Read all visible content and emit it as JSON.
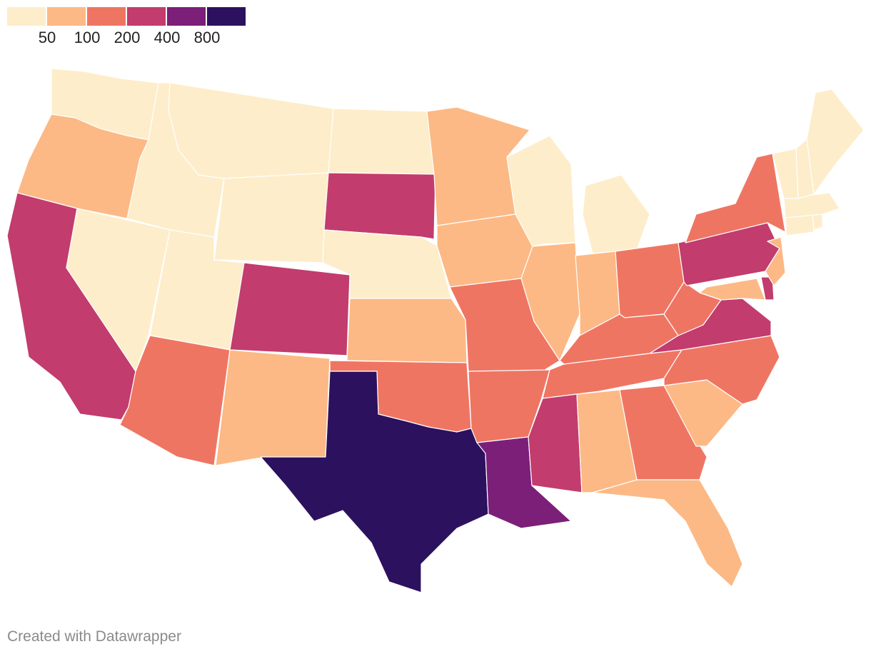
{
  "legend": {
    "colors": [
      "#fdedca",
      "#fcb985",
      "#ef7563",
      "#c23c6e",
      "#7b1f79",
      "#2c115f"
    ],
    "thresholds": [
      "50",
      "100",
      "200",
      "400",
      "800"
    ]
  },
  "map": {
    "units": "bins",
    "states": [
      {
        "name": "Washington",
        "bin": 0
      },
      {
        "name": "Oregon",
        "bin": 1
      },
      {
        "name": "California",
        "bin": 3
      },
      {
        "name": "Nevada",
        "bin": 0
      },
      {
        "name": "Idaho",
        "bin": 0
      },
      {
        "name": "Montana",
        "bin": 0
      },
      {
        "name": "Wyoming",
        "bin": 0
      },
      {
        "name": "Utah",
        "bin": 0
      },
      {
        "name": "Arizona",
        "bin": 2
      },
      {
        "name": "Colorado",
        "bin": 3
      },
      {
        "name": "New Mexico",
        "bin": 1
      },
      {
        "name": "North Dakota",
        "bin": 0
      },
      {
        "name": "South Dakota",
        "bin": 3
      },
      {
        "name": "Nebraska",
        "bin": 0
      },
      {
        "name": "Kansas",
        "bin": 1
      },
      {
        "name": "Oklahoma",
        "bin": 2
      },
      {
        "name": "Texas",
        "bin": 5
      },
      {
        "name": "Minnesota",
        "bin": 1
      },
      {
        "name": "Iowa",
        "bin": 1
      },
      {
        "name": "Missouri",
        "bin": 2
      },
      {
        "name": "Arkansas",
        "bin": 2
      },
      {
        "name": "Louisiana",
        "bin": 4
      },
      {
        "name": "Wisconsin",
        "bin": 0
      },
      {
        "name": "Illinois",
        "bin": 1
      },
      {
        "name": "Michigan",
        "bin": 0
      },
      {
        "name": "Indiana",
        "bin": 1
      },
      {
        "name": "Ohio",
        "bin": 2
      },
      {
        "name": "Kentucky",
        "bin": 2
      },
      {
        "name": "Tennessee",
        "bin": 2
      },
      {
        "name": "Mississippi",
        "bin": 3
      },
      {
        "name": "Alabama",
        "bin": 1
      },
      {
        "name": "Georgia",
        "bin": 2
      },
      {
        "name": "Florida",
        "bin": 1
      },
      {
        "name": "South Carolina",
        "bin": 1
      },
      {
        "name": "North Carolina",
        "bin": 2
      },
      {
        "name": "Virginia",
        "bin": 3
      },
      {
        "name": "West Virginia",
        "bin": 2
      },
      {
        "name": "Maryland",
        "bin": 1
      },
      {
        "name": "Delaware",
        "bin": 3
      },
      {
        "name": "Pennsylvania",
        "bin": 3
      },
      {
        "name": "New Jersey",
        "bin": 1
      },
      {
        "name": "New York",
        "bin": 2
      },
      {
        "name": "Connecticut",
        "bin": 0
      },
      {
        "name": "Rhode Island",
        "bin": 0
      },
      {
        "name": "Massachusetts",
        "bin": 0
      },
      {
        "name": "Vermont",
        "bin": 0
      },
      {
        "name": "New Hampshire",
        "bin": 0
      },
      {
        "name": "Maine",
        "bin": 0
      }
    ]
  },
  "credit": "Created with Datawrapper"
}
